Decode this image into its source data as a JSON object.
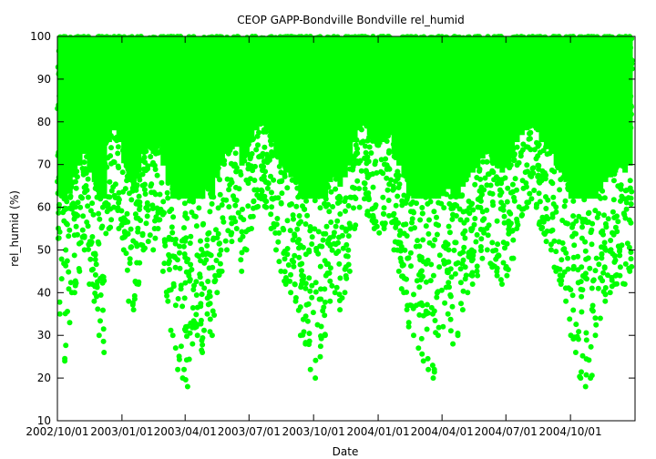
{
  "chart_data": {
    "type": "scatter",
    "title": "CEOP GAPP-Bondville Bondville  rel_humid",
    "xlabel": "Date",
    "ylabel": "rel_humid (%)",
    "ylim": [
      10,
      100
    ],
    "xlim": [
      "2002-10-01",
      "2005-01-01"
    ],
    "grid": false,
    "legend": "none",
    "series_color": "#00ff00",
    "x_ticks": [
      {
        "date": "2002-10-01",
        "label": "2002/10/01"
      },
      {
        "date": "2003-01-01",
        "label": "2003/01/01"
      },
      {
        "date": "2003-04-01",
        "label": "2003/04/01"
      },
      {
        "date": "2003-07-01",
        "label": "2003/07/01"
      },
      {
        "date": "2003-10-01",
        "label": "2003/10/01"
      },
      {
        "date": "2004-01-01",
        "label": "2004/01/01"
      },
      {
        "date": "2004-04-01",
        "label": "2004/04/01"
      },
      {
        "date": "2004-07-01",
        "label": "2004/07/01"
      },
      {
        "date": "2004-10-01",
        "label": "2004/10/01"
      }
    ],
    "y_ticks": [
      10,
      20,
      30,
      40,
      50,
      60,
      70,
      80,
      90,
      100
    ],
    "series": [
      {
        "x": [
          "2002-10-01",
          "2002-10-08",
          "2002-10-15",
          "2002-10-22",
          "2002-10-29",
          "2002-11-05",
          "2002-11-12",
          "2002-11-19",
          "2002-11-26",
          "2002-12-03",
          "2002-12-10",
          "2002-12-17",
          "2002-12-24",
          "2002-12-31",
          "2003-01-07",
          "2003-01-14",
          "2003-01-21",
          "2003-01-28",
          "2003-02-04",
          "2003-02-11",
          "2003-02-18",
          "2003-02-25",
          "2003-03-04",
          "2003-03-11",
          "2003-03-18",
          "2003-03-25",
          "2003-04-01",
          "2003-04-08",
          "2003-04-15",
          "2003-04-22",
          "2003-04-29",
          "2003-05-06",
          "2003-05-13",
          "2003-05-20",
          "2003-05-27",
          "2003-06-03",
          "2003-06-10",
          "2003-06-17",
          "2003-06-24",
          "2003-07-01",
          "2003-07-08",
          "2003-07-15",
          "2003-07-22",
          "2003-07-29",
          "2003-08-05",
          "2003-08-12",
          "2003-08-19",
          "2003-08-26",
          "2003-09-02",
          "2003-09-09",
          "2003-09-16",
          "2003-09-23",
          "2003-09-30",
          "2003-10-07",
          "2003-10-14",
          "2003-10-21",
          "2003-10-28",
          "2003-11-04",
          "2003-11-11",
          "2003-11-18",
          "2003-11-25",
          "2003-12-02",
          "2003-12-09",
          "2003-12-16",
          "2003-12-23",
          "2003-12-30",
          "2004-01-06",
          "2004-01-13",
          "2004-01-20",
          "2004-01-27",
          "2004-02-03",
          "2004-02-10",
          "2004-02-17",
          "2004-02-24",
          "2004-03-02",
          "2004-03-09",
          "2004-03-16",
          "2004-03-23",
          "2004-03-30",
          "2004-04-06",
          "2004-04-13",
          "2004-04-20",
          "2004-04-27",
          "2004-05-04",
          "2004-05-11",
          "2004-05-18",
          "2004-05-25",
          "2004-06-01",
          "2004-06-08",
          "2004-06-15",
          "2004-06-22",
          "2004-06-29",
          "2004-07-06",
          "2004-07-13",
          "2004-07-20",
          "2004-07-27",
          "2004-08-03",
          "2004-08-10",
          "2004-08-17",
          "2004-08-24",
          "2004-08-31",
          "2004-09-07",
          "2004-09-14",
          "2004-09-21",
          "2004-09-28",
          "2004-10-05",
          "2004-10-12",
          "2004-10-19",
          "2004-10-26",
          "2004-11-02",
          "2004-11-09",
          "2004-11-16",
          "2004-11-23",
          "2004-11-30",
          "2004-12-07",
          "2004-12-14",
          "2004-12-21",
          "2004-12-28"
        ],
        "min": [
          35,
          24,
          33,
          40,
          45,
          50,
          42,
          38,
          30,
          26,
          55,
          60,
          55,
          50,
          38,
          36,
          42,
          50,
          52,
          50,
          55,
          45,
          38,
          30,
          22,
          20,
          18,
          28,
          30,
          26,
          35,
          30,
          40,
          45,
          50,
          52,
          55,
          45,
          50,
          55,
          60,
          62,
          60,
          55,
          50,
          45,
          42,
          40,
          38,
          30,
          28,
          22,
          20,
          25,
          30,
          38,
          40,
          36,
          40,
          45,
          55,
          60,
          62,
          58,
          55,
          54,
          55,
          58,
          50,
          45,
          40,
          32,
          30,
          27,
          24,
          22,
          20,
          30,
          32,
          35,
          28,
          30,
          36,
          40,
          42,
          44,
          48,
          50,
          46,
          44,
          42,
          44,
          48,
          55,
          58,
          60,
          62,
          60,
          55,
          52,
          50,
          45,
          42,
          38,
          30,
          26,
          20,
          18,
          20,
          30,
          34,
          38,
          40,
          42,
          44,
          42,
          45,
          62
        ],
        "max": [
          100,
          100,
          100,
          100,
          100,
          100,
          100,
          100,
          100,
          100,
          100,
          100,
          100,
          100,
          100,
          100,
          100,
          100,
          100,
          100,
          100,
          100,
          100,
          100,
          100,
          100,
          100,
          100,
          100,
          100,
          100,
          100,
          100,
          100,
          100,
          100,
          100,
          100,
          100,
          100,
          100,
          100,
          100,
          100,
          100,
          100,
          100,
          100,
          100,
          100,
          100,
          100,
          100,
          100,
          100,
          100,
          100,
          100,
          100,
          100,
          100,
          100,
          100,
          100,
          100,
          100,
          100,
          100,
          100,
          100,
          100,
          100,
          100,
          100,
          100,
          100,
          100,
          100,
          100,
          100,
          100,
          100,
          100,
          100,
          100,
          100,
          100,
          100,
          100,
          100,
          100,
          100,
          100,
          100,
          100,
          100,
          100,
          100,
          100,
          100,
          100,
          100,
          100,
          100,
          100,
          100,
          100,
          100,
          100,
          100,
          100,
          100,
          100,
          100,
          100,
          100,
          100,
          100
        ]
      }
    ]
  }
}
